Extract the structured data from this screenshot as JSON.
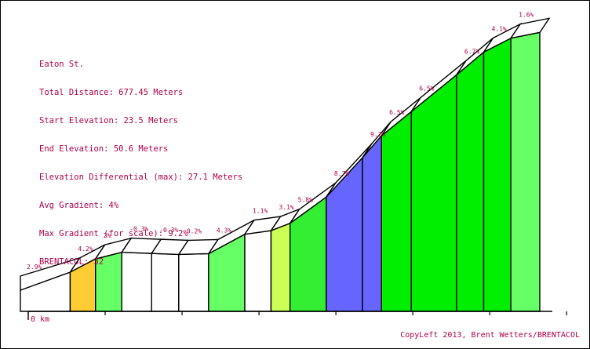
{
  "info": {
    "street": "Eaton St.",
    "total_distance": "Total Distance: 677.45 Meters",
    "start_elevation": "Start Elevation: 23.5 Meters",
    "end_elevation": "End Elevation: 50.6 Meters",
    "elevation_differential": "Elevation Differential (max): 27.1 Meters",
    "avg_gradient": "Avg Gradient: 4%",
    "max_gradient": "Max Gradient (for scale): 9.2%",
    "brentacol": "BRENTACOL: 32"
  },
  "credit": "CopyLeft 2013, Brent Wetters/BRENTACOL",
  "chart_data": {
    "type": "area",
    "title": "Eaton St.",
    "x_unit": "m",
    "x_start_label": "0 km",
    "total_distance_m": 677.45,
    "start_elevation_m": 23.5,
    "end_elevation_m": 50.6,
    "segments": [
      {
        "gradient_label": "2.9%",
        "gradient": 2.9,
        "length_m": 55.0,
        "color": "#ffffff"
      },
      {
        "gradient_label": "4.2%",
        "gradient": 4.2,
        "length_m": 28.0,
        "color": "#ffcc33"
      },
      {
        "gradient_label": "2%",
        "gradient": 2.0,
        "length_m": 29.0,
        "color": "#66ff66"
      },
      {
        "gradient_label": "-0.3%",
        "gradient": -0.3,
        "length_m": 33.0,
        "color": "#ffffff"
      },
      {
        "gradient_label": "-0.3%",
        "gradient": -0.3,
        "length_m": 30.0,
        "color": "#ffffff"
      },
      {
        "gradient_label": "0.2%",
        "gradient": 0.2,
        "length_m": 33.0,
        "color": "#ffffff"
      },
      {
        "gradient_label": "4.3%",
        "gradient": 4.3,
        "length_m": 40.0,
        "color": "#66ff66"
      },
      {
        "gradient_label": "1.1%",
        "gradient": 1.1,
        "length_m": 29.0,
        "color": "#ffffff"
      },
      {
        "gradient_label": "3.1%",
        "gradient": 3.1,
        "length_m": 21.0,
        "color": "#ccff55"
      },
      {
        "gradient_label": "5.8%",
        "gradient": 5.8,
        "length_m": 40.0,
        "color": "#33ee33"
      },
      {
        "gradient_label": "8.7%",
        "gradient": 8.7,
        "length_m": 40.0,
        "color": "#6666ff"
      },
      {
        "gradient_label": "9.2%",
        "gradient": 9.2,
        "length_m": 21.0,
        "color": "#6666ff"
      },
      {
        "gradient_label": "6.5%",
        "gradient": 6.5,
        "length_m": 33.0,
        "color": "#00ee00"
      },
      {
        "gradient_label": "6.5%",
        "gradient": 6.5,
        "length_m": 50.0,
        "color": "#00ee00"
      },
      {
        "gradient_label": "6.7%",
        "gradient": 6.7,
        "length_m": 30.0,
        "color": "#00ee00"
      },
      {
        "gradient_label": "4.1%",
        "gradient": 4.1,
        "length_m": 30.0,
        "color": "#00ee00"
      },
      {
        "gradient_label": "1.6%",
        "gradient": 1.6,
        "length_m": 32.0,
        "color": "#66ff66"
      }
    ],
    "x_ticks_m": [
      0,
      85,
      170,
      255,
      340,
      425,
      510,
      595
    ]
  }
}
